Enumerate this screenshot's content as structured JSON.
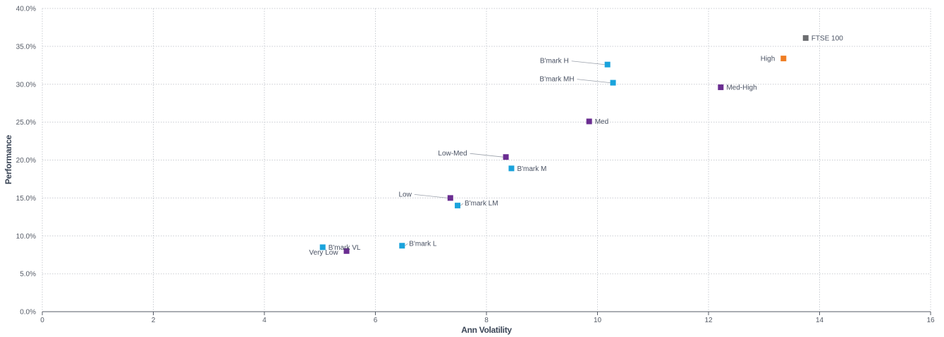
{
  "chart_data": {
    "type": "scatter",
    "title": "",
    "xlabel": "Ann Volatility",
    "ylabel": "Performance",
    "xlim": [
      0,
      16
    ],
    "ylim": [
      0,
      0.4
    ],
    "x_ticks": [
      "0",
      "2",
      "4",
      "6",
      "8",
      "10",
      "12",
      "14",
      "16"
    ],
    "y_ticks": [
      "0.0%",
      "5.0%",
      "10.0%",
      "15.0%",
      "20.0%",
      "25.0%",
      "30.0%",
      "35.0%",
      "40.0%"
    ],
    "grid": true,
    "colors": {
      "portfolio": "#6a2d91",
      "benchmark": "#1aa3dc",
      "high": "#ef7d22",
      "index": "#6d6e71"
    },
    "points": [
      {
        "label": "FTSE 100",
        "x": 13.75,
        "y": 0.361,
        "group": "index",
        "label_side": "right"
      },
      {
        "label": "High",
        "x": 13.35,
        "y": 0.334,
        "group": "high",
        "label_side": "left"
      },
      {
        "label": "B'mark H",
        "x": 10.18,
        "y": 0.326,
        "group": "benchmark",
        "label_side": "left-leader"
      },
      {
        "label": "B'mark MH",
        "x": 10.28,
        "y": 0.302,
        "group": "benchmark",
        "label_side": "left-leader"
      },
      {
        "label": "Med-High",
        "x": 12.22,
        "y": 0.296,
        "group": "portfolio",
        "label_side": "right"
      },
      {
        "label": "Med",
        "x": 9.85,
        "y": 0.251,
        "group": "portfolio",
        "label_side": "right"
      },
      {
        "label": "Low-Med",
        "x": 8.35,
        "y": 0.204,
        "group": "portfolio",
        "label_side": "left-leader"
      },
      {
        "label": "B'mark M",
        "x": 8.45,
        "y": 0.189,
        "group": "benchmark",
        "label_side": "right"
      },
      {
        "label": "Low",
        "x": 7.35,
        "y": 0.15,
        "group": "portfolio",
        "label_side": "left-leader"
      },
      {
        "label": "B'mark LM",
        "x": 7.48,
        "y": 0.14,
        "group": "benchmark",
        "label_side": "right-leader"
      },
      {
        "label": "B'mark L",
        "x": 6.48,
        "y": 0.087,
        "group": "benchmark",
        "label_side": "right-leader"
      },
      {
        "label": "B'mark VL",
        "x": 5.05,
        "y": 0.085,
        "group": "benchmark",
        "label_side": "right"
      },
      {
        "label": "Very Low",
        "x": 5.48,
        "y": 0.08,
        "group": "portfolio",
        "label_side": "left-below"
      }
    ]
  }
}
